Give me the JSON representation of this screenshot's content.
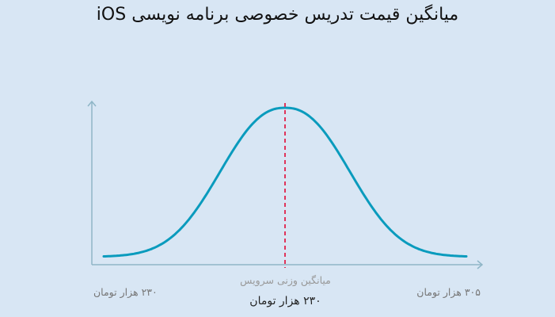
{
  "chart_data": {
    "type": "line",
    "title": "میانگین قیمت تدریس خصوصی برنامه نویسی iOS",
    "x_min_label": "۲۳۰ هزار تومان",
    "x_max_label": "۳۰۵ هزار تومان",
    "center_caption": "میانگین وزنی سرویس",
    "center_value_label": "۲۳۰ هزار تومان",
    "mean_line_color": "#e0345a",
    "curve_color": "#0a9bbd",
    "axis_color": "#8fb6c7"
  }
}
